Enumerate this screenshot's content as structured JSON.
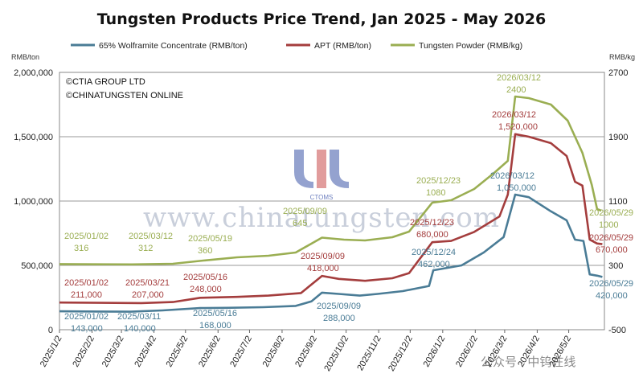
{
  "chart_data": {
    "type": "line",
    "title": "Tungsten Products Price Trend, Jan 2025 - May 2026",
    "y_left_unit": "RMB/ton",
    "y_right_unit": "RMB/kg",
    "y_left_ticks": [
      "0",
      "500,000",
      "1,000,000",
      "1,500,000",
      "2,000,000"
    ],
    "y_left_range": [
      0,
      2000000
    ],
    "y_right_ticks": [
      "-500",
      "300",
      "1100",
      "1900",
      "2700"
    ],
    "y_right_range": [
      -500,
      2700
    ],
    "x_ticks": [
      "2025/1/2",
      "2025/2/2",
      "2025/3/2",
      "2025/4/2",
      "2025/5/2",
      "2025/6/2",
      "2025/7/2",
      "2025/8/2",
      "2025/9/2",
      "2025/10/2",
      "2025/11/2",
      "2025/12/2",
      "2026/1/2",
      "2026/2/2",
      "2026/3/2",
      "2026/4/2",
      "2026/5/2"
    ],
    "x_range": [
      "2025-01-02",
      "2026-06-05"
    ],
    "grid": {
      "horizontal": true,
      "vertical": false
    },
    "legend_position": "top",
    "copyright": [
      "©CTIA GROUP LTD",
      "©CHINATUNGSTEN ONLINE"
    ],
    "watermark": {
      "url": "www.chinatungsten.com",
      "logo_text": "CTOMS",
      "wechat": "公众号 · 中钨在线"
    },
    "series": [
      {
        "name": "65% Wolframite Concentrate (RMB/ton)",
        "axis": "left",
        "color": "#4a7c96",
        "points": [
          [
            "2025-01-02",
            143000
          ],
          [
            "2025-02-10",
            141000
          ],
          [
            "2025-03-11",
            140000
          ],
          [
            "2025-04-10",
            150000
          ],
          [
            "2025-05-16",
            168000
          ],
          [
            "2025-06-10",
            170000
          ],
          [
            "2025-07-15",
            175000
          ],
          [
            "2025-08-15",
            185000
          ],
          [
            "2025-08-30",
            220000
          ],
          [
            "2025-09-09",
            288000
          ],
          [
            "2025-09-25",
            278000
          ],
          [
            "2025-10-15",
            265000
          ],
          [
            "2025-11-01",
            278000
          ],
          [
            "2025-11-25",
            300000
          ],
          [
            "2025-12-20",
            340000
          ],
          [
            "2025-12-24",
            462000
          ],
          [
            "2026-01-20",
            500000
          ],
          [
            "2026-02-10",
            600000
          ],
          [
            "2026-03-01",
            720000
          ],
          [
            "2026-03-12",
            1050000
          ],
          [
            "2026-03-25",
            1030000
          ],
          [
            "2026-04-15",
            920000
          ],
          [
            "2026-04-30",
            850000
          ],
          [
            "2026-05-08",
            700000
          ],
          [
            "2026-05-16",
            690000
          ],
          [
            "2026-05-22",
            430000
          ],
          [
            "2026-05-29",
            420000
          ],
          [
            "2026-06-03",
            410000
          ]
        ]
      },
      {
        "name": "APT (RMB/ton)",
        "axis": "left",
        "color": "#a43d3d",
        "points": [
          [
            "2025-01-02",
            211000
          ],
          [
            "2025-03-21",
            207000
          ],
          [
            "2025-04-20",
            215000
          ],
          [
            "2025-05-16",
            248000
          ],
          [
            "2025-06-20",
            255000
          ],
          [
            "2025-07-20",
            265000
          ],
          [
            "2025-08-20",
            285000
          ],
          [
            "2025-09-09",
            418000
          ],
          [
            "2025-09-25",
            395000
          ],
          [
            "2025-10-20",
            380000
          ],
          [
            "2025-11-15",
            400000
          ],
          [
            "2025-12-01",
            440000
          ],
          [
            "2025-12-23",
            680000
          ],
          [
            "2026-01-10",
            690000
          ],
          [
            "2026-02-01",
            760000
          ],
          [
            "2026-02-25",
            880000
          ],
          [
            "2026-03-05",
            1050000
          ],
          [
            "2026-03-12",
            1520000
          ],
          [
            "2026-03-25",
            1500000
          ],
          [
            "2026-04-15",
            1450000
          ],
          [
            "2026-04-30",
            1350000
          ],
          [
            "2026-05-08",
            1150000
          ],
          [
            "2026-05-15",
            1120000
          ],
          [
            "2026-05-22",
            700000
          ],
          [
            "2026-05-29",
            670000
          ],
          [
            "2026-06-03",
            665000
          ]
        ]
      },
      {
        "name": "Tungsten Powder (RMB/kg)",
        "axis": "right",
        "color": "#9aae52",
        "points": [
          [
            "2025-01-02",
            316
          ],
          [
            "2025-03-12",
            312
          ],
          [
            "2025-04-20",
            320
          ],
          [
            "2025-05-19",
            360
          ],
          [
            "2025-06-20",
            400
          ],
          [
            "2025-07-20",
            420
          ],
          [
            "2025-08-15",
            460
          ],
          [
            "2025-09-09",
            645
          ],
          [
            "2025-09-30",
            620
          ],
          [
            "2025-10-20",
            610
          ],
          [
            "2025-11-15",
            650
          ],
          [
            "2025-12-01",
            720
          ],
          [
            "2025-12-23",
            1080
          ],
          [
            "2026-01-10",
            1110
          ],
          [
            "2026-02-01",
            1250
          ],
          [
            "2026-02-20",
            1450
          ],
          [
            "2026-03-05",
            1600
          ],
          [
            "2026-03-12",
            2400
          ],
          [
            "2026-03-25",
            2380
          ],
          [
            "2026-04-15",
            2300
          ],
          [
            "2026-05-01",
            2100
          ],
          [
            "2026-05-15",
            1700
          ],
          [
            "2026-05-24",
            1300
          ],
          [
            "2026-05-29",
            1000
          ],
          [
            "2026-06-02",
            980
          ]
        ]
      }
    ],
    "annotations": [
      {
        "series": 2,
        "date": "2025/01/02",
        "value": "316"
      },
      {
        "series": 2,
        "date": "2025/03/12",
        "value": "312"
      },
      {
        "series": 2,
        "date": "2025/05/19",
        "value": "360"
      },
      {
        "series": 2,
        "date": "2025/09/09",
        "value": "645"
      },
      {
        "series": 2,
        "date": "2025/12/23",
        "value": "1080"
      },
      {
        "series": 2,
        "date": "2026/03/12",
        "value": "2400"
      },
      {
        "series": 2,
        "date": "2026/05/29",
        "value": "1000"
      },
      {
        "series": 1,
        "date": "2025/01/02",
        "value": "211,000"
      },
      {
        "series": 1,
        "date": "2025/03/21",
        "value": "207,000"
      },
      {
        "series": 1,
        "date": "2025/05/16",
        "value": "248,000"
      },
      {
        "series": 1,
        "date": "2025/09/09",
        "value": "418,000"
      },
      {
        "series": 1,
        "date": "2025/12/23",
        "value": "680,000"
      },
      {
        "series": 1,
        "date": "2026/03/12",
        "value": "1,520,000"
      },
      {
        "series": 1,
        "date": "2026/05/29",
        "value": "670,000"
      },
      {
        "series": 0,
        "date": "2025/01/02",
        "value": "143,000"
      },
      {
        "series": 0,
        "date": "2025/03/11",
        "value": "140,000"
      },
      {
        "series": 0,
        "date": "2025/05/16",
        "value": "168,000"
      },
      {
        "series": 0,
        "date": "2025/09/09",
        "value": "288,000"
      },
      {
        "series": 0,
        "date": "2025/12/24",
        "value": "462,000"
      },
      {
        "series": 0,
        "date": "2026/03/12",
        "value": "1,050,000"
      },
      {
        "series": 0,
        "date": "2026/05/29",
        "value": "420,000"
      }
    ]
  }
}
